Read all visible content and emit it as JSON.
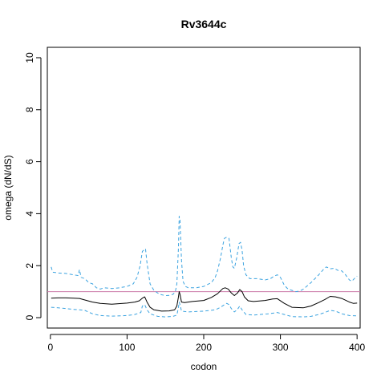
{
  "chart_data": {
    "type": "line",
    "title": "Rv3644c",
    "xlabel": "codon",
    "ylabel": "omega (dN/dS)",
    "xlim": [
      -4,
      404
    ],
    "ylim": [
      -0.4,
      10.4
    ],
    "x_ticks": [
      0,
      100,
      200,
      300,
      400
    ],
    "y_ticks": [
      0,
      2,
      4,
      6,
      8,
      10
    ],
    "grid": false,
    "reference_line": {
      "y": 1,
      "color": "#cc79a7"
    },
    "series": [
      {
        "style": "dashed",
        "color": "#3ba3e0",
        "points": [
          [
            1,
            1.95
          ],
          [
            3,
            1.75
          ],
          [
            10,
            1.72
          ],
          [
            20,
            1.7
          ],
          [
            30,
            1.65
          ],
          [
            36,
            1.62
          ],
          [
            38,
            1.85
          ],
          [
            40,
            1.55
          ],
          [
            45,
            1.5
          ],
          [
            50,
            1.35
          ],
          [
            55,
            1.3
          ],
          [
            60,
            1.15
          ],
          [
            65,
            1.1
          ],
          [
            70,
            1.15
          ],
          [
            80,
            1.12
          ],
          [
            90,
            1.15
          ],
          [
            100,
            1.2
          ],
          [
            108,
            1.3
          ],
          [
            113,
            1.55
          ],
          [
            117,
            2.0
          ],
          [
            120,
            2.55
          ],
          [
            124,
            2.65
          ],
          [
            126,
            2.1
          ],
          [
            130,
            1.3
          ],
          [
            135,
            1.05
          ],
          [
            140,
            0.95
          ],
          [
            145,
            0.88
          ],
          [
            150,
            0.85
          ],
          [
            155,
            0.86
          ],
          [
            160,
            0.9
          ],
          [
            163,
            1.0
          ],
          [
            165,
            1.3
          ],
          [
            167,
            2.7
          ],
          [
            168,
            3.9
          ],
          [
            169,
            3.75
          ],
          [
            171,
            2.2
          ],
          [
            173,
            1.4
          ],
          [
            176,
            1.2
          ],
          [
            180,
            1.15
          ],
          [
            190,
            1.15
          ],
          [
            200,
            1.2
          ],
          [
            210,
            1.35
          ],
          [
            215,
            1.55
          ],
          [
            218,
            1.8
          ],
          [
            222,
            2.3
          ],
          [
            225,
            2.8
          ],
          [
            227,
            3.05
          ],
          [
            230,
            3.1
          ],
          [
            233,
            3.05
          ],
          [
            236,
            2.3
          ],
          [
            238,
            1.95
          ],
          [
            240,
            1.9
          ],
          [
            243,
            2.3
          ],
          [
            246,
            2.85
          ],
          [
            248,
            2.9
          ],
          [
            250,
            2.6
          ],
          [
            252,
            2.0
          ],
          [
            255,
            1.65
          ],
          [
            260,
            1.5
          ],
          [
            270,
            1.5
          ],
          [
            280,
            1.45
          ],
          [
            287,
            1.5
          ],
          [
            292,
            1.6
          ],
          [
            296,
            1.65
          ],
          [
            300,
            1.55
          ],
          [
            305,
            1.25
          ],
          [
            310,
            1.1
          ],
          [
            315,
            1.05
          ],
          [
            320,
            1.0
          ],
          [
            325,
            1.02
          ],
          [
            330,
            1.1
          ],
          [
            340,
            1.35
          ],
          [
            350,
            1.65
          ],
          [
            356,
            1.85
          ],
          [
            360,
            1.95
          ],
          [
            365,
            1.88
          ],
          [
            370,
            1.9
          ],
          [
            375,
            1.82
          ],
          [
            380,
            1.8
          ],
          [
            385,
            1.65
          ],
          [
            390,
            1.45
          ],
          [
            393,
            1.4
          ],
          [
            398,
            1.55
          ],
          [
            400,
            1.6
          ]
        ]
      },
      {
        "style": "solid",
        "color": "#000000",
        "points": [
          [
            1,
            0.75
          ],
          [
            10,
            0.76
          ],
          [
            20,
            0.76
          ],
          [
            30,
            0.75
          ],
          [
            38,
            0.74
          ],
          [
            45,
            0.68
          ],
          [
            55,
            0.6
          ],
          [
            65,
            0.55
          ],
          [
            80,
            0.52
          ],
          [
            100,
            0.56
          ],
          [
            110,
            0.6
          ],
          [
            116,
            0.65
          ],
          [
            120,
            0.75
          ],
          [
            123,
            0.8
          ],
          [
            126,
            0.6
          ],
          [
            130,
            0.4
          ],
          [
            135,
            0.3
          ],
          [
            145,
            0.25
          ],
          [
            155,
            0.26
          ],
          [
            162,
            0.3
          ],
          [
            165,
            0.45
          ],
          [
            167,
            0.8
          ],
          [
            168,
            1.0
          ],
          [
            169,
            0.9
          ],
          [
            171,
            0.6
          ],
          [
            175,
            0.58
          ],
          [
            185,
            0.62
          ],
          [
            200,
            0.66
          ],
          [
            210,
            0.78
          ],
          [
            218,
            0.92
          ],
          [
            225,
            1.12
          ],
          [
            228,
            1.15
          ],
          [
            232,
            1.1
          ],
          [
            236,
            0.95
          ],
          [
            240,
            0.85
          ],
          [
            244,
            0.95
          ],
          [
            247,
            1.08
          ],
          [
            250,
            1.0
          ],
          [
            253,
            0.8
          ],
          [
            258,
            0.65
          ],
          [
            265,
            0.62
          ],
          [
            280,
            0.66
          ],
          [
            290,
            0.72
          ],
          [
            296,
            0.73
          ],
          [
            305,
            0.55
          ],
          [
            315,
            0.4
          ],
          [
            330,
            0.38
          ],
          [
            340,
            0.45
          ],
          [
            350,
            0.58
          ],
          [
            358,
            0.7
          ],
          [
            365,
            0.82
          ],
          [
            372,
            0.8
          ],
          [
            380,
            0.74
          ],
          [
            390,
            0.6
          ],
          [
            395,
            0.55
          ],
          [
            400,
            0.56
          ]
        ]
      },
      {
        "style": "dashed",
        "color": "#3ba3e0",
        "points": [
          [
            1,
            0.4
          ],
          [
            10,
            0.38
          ],
          [
            20,
            0.35
          ],
          [
            30,
            0.32
          ],
          [
            38,
            0.3
          ],
          [
            45,
            0.28
          ],
          [
            55,
            0.15
          ],
          [
            65,
            0.08
          ],
          [
            80,
            0.06
          ],
          [
            100,
            0.08
          ],
          [
            110,
            0.12
          ],
          [
            118,
            0.2
          ],
          [
            120,
            0.45
          ],
          [
            123,
            0.5
          ],
          [
            126,
            0.3
          ],
          [
            130,
            0.15
          ],
          [
            140,
            0.05
          ],
          [
            150,
            0.03
          ],
          [
            160,
            0.05
          ],
          [
            165,
            0.1
          ],
          [
            167,
            0.4
          ],
          [
            168,
            0.6
          ],
          [
            169,
            0.5
          ],
          [
            171,
            0.25
          ],
          [
            180,
            0.22
          ],
          [
            200,
            0.25
          ],
          [
            215,
            0.3
          ],
          [
            222,
            0.4
          ],
          [
            227,
            0.5
          ],
          [
            230,
            0.55
          ],
          [
            233,
            0.5
          ],
          [
            236,
            0.35
          ],
          [
            240,
            0.22
          ],
          [
            244,
            0.32
          ],
          [
            247,
            0.45
          ],
          [
            250,
            0.3
          ],
          [
            255,
            0.12
          ],
          [
            265,
            0.1
          ],
          [
            285,
            0.15
          ],
          [
            296,
            0.2
          ],
          [
            305,
            0.12
          ],
          [
            315,
            0.04
          ],
          [
            330,
            0.03
          ],
          [
            340,
            0.05
          ],
          [
            350,
            0.12
          ],
          [
            358,
            0.2
          ],
          [
            365,
            0.28
          ],
          [
            372,
            0.25
          ],
          [
            380,
            0.15
          ],
          [
            390,
            0.08
          ],
          [
            400,
            0.07
          ]
        ]
      }
    ]
  }
}
